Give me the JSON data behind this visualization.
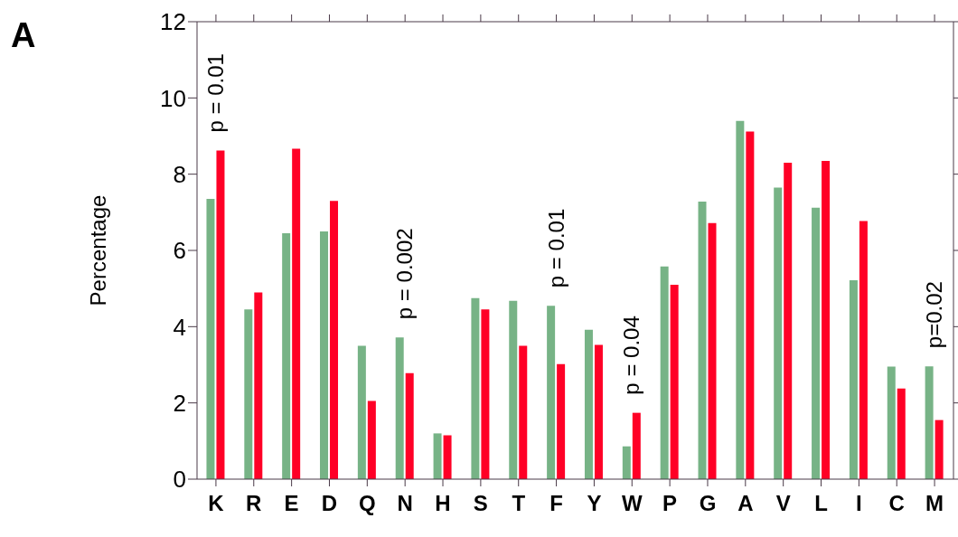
{
  "chart_data": {
    "type": "bar",
    "title": "A",
    "ylabel": "Percentage",
    "categories": [
      "K",
      "R",
      "E",
      "D",
      "Q",
      "N",
      "H",
      "S",
      "T",
      "F",
      "Y",
      "W",
      "P",
      "G",
      "A",
      "V",
      "L",
      "I",
      "C",
      "M"
    ],
    "series": [
      {
        "color": "#77b386",
        "values": [
          7.35,
          4.45,
          6.45,
          6.5,
          3.5,
          3.72,
          1.2,
          4.75,
          4.68,
          4.55,
          3.92,
          0.86,
          5.58,
          7.28,
          9.4,
          7.65,
          7.12,
          5.22,
          2.95,
          2.96
        ]
      },
      {
        "color": "#ff0026",
        "values": [
          8.62,
          4.9,
          8.67,
          7.3,
          2.05,
          2.78,
          1.15,
          4.45,
          3.5,
          3.02,
          3.52,
          1.74,
          5.1,
          6.72,
          9.12,
          8.3,
          8.35,
          6.77,
          2.38,
          1.55
        ]
      }
    ],
    "ylim": [
      0,
      12
    ],
    "yticks": [
      0,
      2,
      4,
      6,
      8,
      10,
      12
    ],
    "annotations": [
      {
        "text": "p = 0.01",
        "x": "K",
        "y": 8.62
      },
      {
        "text": "p = 0.002",
        "x": "N",
        "y": 3.72
      },
      {
        "text": "p = 0.01",
        "x": "F",
        "y": 4.55
      },
      {
        "text": "p = 0.04",
        "x": "W",
        "y": 1.74
      },
      {
        "text": "p=0.02",
        "x": "M",
        "y": 2.96
      }
    ]
  }
}
